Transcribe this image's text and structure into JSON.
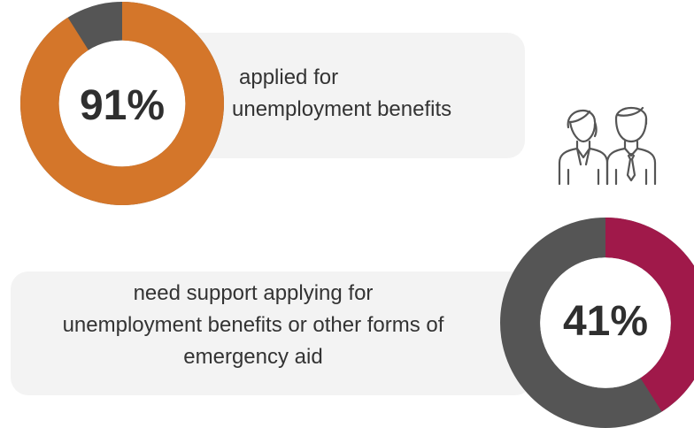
{
  "chart_data": [
    {
      "type": "pie",
      "style": "donut",
      "values": [
        91,
        9
      ],
      "colors": [
        "#D4762A",
        "#555555"
      ],
      "center_label": "91%",
      "caption_lines": [
        "applied for",
        "unemployment benefits"
      ]
    },
    {
      "type": "pie",
      "style": "donut",
      "values": [
        41,
        59
      ],
      "colors": [
        "#A0194A",
        "#555555"
      ],
      "center_label": "41%",
      "caption_lines": [
        "need support applying for",
        "unemployment benefits or other forms of",
        "emergency aid"
      ]
    }
  ],
  "icons": {
    "people": "people-icon"
  },
  "colors": {
    "card_bg": "#f3f3f3",
    "text": "#333333"
  }
}
